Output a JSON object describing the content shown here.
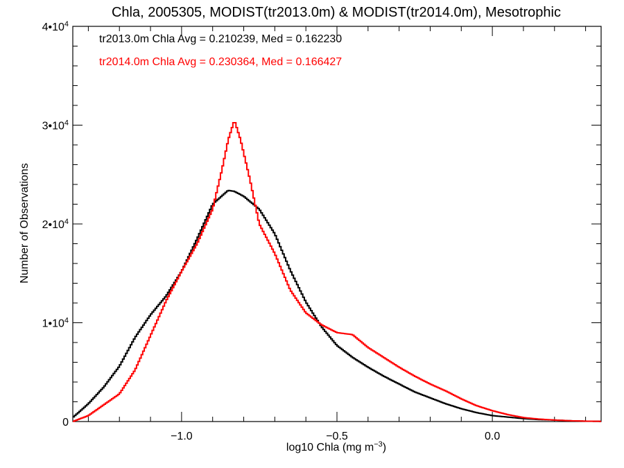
{
  "chart_data": {
    "type": "line",
    "title": "Chla, 2005305, MODIST(tr2013.0m) & MODIST(tr2014.0m), Mesotrophic",
    "xlabel_base": "log10 Chla (mg m",
    "xlabel_sup": "−3",
    "xlabel_end": ")",
    "ylabel": "Number of Observations",
    "xlim": [
      -1.35,
      0.35
    ],
    "ylim": [
      0,
      40000
    ],
    "x_ticks": [
      {
        "value": -1.0,
        "label": "−1.0"
      },
      {
        "value": -0.5,
        "label": "−0.5"
      },
      {
        "value": 0.0,
        "label": "0.0"
      }
    ],
    "y_ticks": [
      {
        "value": 0,
        "label": "0",
        "sup": ""
      },
      {
        "value": 10000,
        "label": "1•10",
        "sup": "4"
      },
      {
        "value": 20000,
        "label": "2•10",
        "sup": "4"
      },
      {
        "value": 30000,
        "label": "3•10",
        "sup": "4"
      },
      {
        "value": 40000,
        "label": "4•10",
        "sup": "4"
      }
    ],
    "grid": false,
    "legend_position": "top-left",
    "series": [
      {
        "name": "tr2013.0m Chla Avg = 0.210239, Med = 0.162230",
        "color": "#000000",
        "style": "step",
        "x": [
          -1.35,
          -1.3,
          -1.25,
          -1.2,
          -1.15,
          -1.1,
          -1.05,
          -1.0,
          -0.95,
          -0.9,
          -0.85,
          -0.83,
          -0.8,
          -0.75,
          -0.7,
          -0.65,
          -0.6,
          -0.55,
          -0.5,
          -0.45,
          -0.4,
          -0.35,
          -0.3,
          -0.25,
          -0.2,
          -0.15,
          -0.1,
          -0.05,
          0.0,
          0.05,
          0.1,
          0.15,
          0.2,
          0.25,
          0.3,
          0.35
        ],
        "y": [
          400,
          1800,
          3500,
          5600,
          8500,
          10800,
          12700,
          15200,
          18500,
          22000,
          23400,
          23300,
          22800,
          21500,
          19000,
          15300,
          12100,
          9600,
          7700,
          6500,
          5500,
          4600,
          3800,
          3000,
          2400,
          1800,
          1300,
          900,
          600,
          450,
          300,
          200,
          150,
          80,
          40,
          20
        ]
      },
      {
        "name": "tr2014.0m Chla Avg = 0.230364, Med = 0.166427",
        "color": "#ff0000",
        "style": "step",
        "x": [
          -1.35,
          -1.3,
          -1.25,
          -1.2,
          -1.15,
          -1.1,
          -1.05,
          -1.0,
          -0.95,
          -0.9,
          -0.87,
          -0.85,
          -0.83,
          -0.81,
          -0.78,
          -0.75,
          -0.7,
          -0.65,
          -0.6,
          -0.55,
          -0.5,
          -0.45,
          -0.4,
          -0.35,
          -0.3,
          -0.25,
          -0.2,
          -0.15,
          -0.1,
          -0.05,
          0.0,
          0.05,
          0.1,
          0.15,
          0.2,
          0.25,
          0.3,
          0.35
        ],
        "y": [
          0,
          600,
          1700,
          2800,
          5200,
          8700,
          12200,
          15200,
          18000,
          21500,
          25500,
          28500,
          30500,
          28500,
          24500,
          20000,
          17000,
          13300,
          11000,
          9800,
          9000,
          8800,
          7500,
          6500,
          5500,
          4600,
          3800,
          3100,
          2300,
          1600,
          1100,
          700,
          400,
          250,
          150,
          80,
          40,
          20
        ]
      }
    ]
  }
}
